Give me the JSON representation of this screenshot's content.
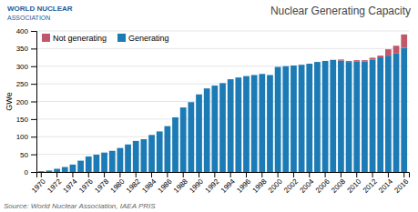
{
  "chart_data": {
    "type": "bar",
    "stacked": true,
    "title": "Nuclear Generating Capacity",
    "y_label": "GWe",
    "annotations": [
      "Source: World Nuclear Association, IAEA PRIS",
      "WORLD NUCLEAR",
      "ASSOCIATION"
    ],
    "categories": [
      "1970",
      null,
      "1972",
      null,
      "1974",
      null,
      "1976",
      null,
      "1978",
      null,
      "1980",
      null,
      "1982",
      null,
      "1984",
      null,
      "1986",
      null,
      "1988",
      null,
      "1990",
      null,
      "1992",
      null,
      "1994",
      null,
      "1996",
      null,
      "1998",
      null,
      "2000",
      null,
      "2002",
      null,
      "2004",
      null,
      "2006",
      null,
      "2008",
      null,
      "2010",
      null,
      "2012",
      null,
      "2014",
      null,
      "2016"
    ],
    "series": [
      {
        "name": "Generating",
        "color": "#1c7bb5",
        "values": [
          2,
          4,
          9,
          14,
          21,
          32,
          44,
          49,
          55,
          60,
          68,
          78,
          88,
          93,
          105,
          115,
          130,
          155,
          183,
          198,
          220,
          237,
          245,
          252,
          263,
          268,
          272,
          275,
          278,
          275,
          298,
          300,
          302,
          304,
          307,
          312,
          315,
          318,
          316,
          312,
          314,
          313,
          319,
          325,
          330,
          336,
          352
        ]
      },
      {
        "name": "Not generating",
        "color": "#c0586a",
        "values": [
          0,
          0,
          0,
          0,
          0,
          0,
          0,
          0,
          0,
          0,
          0,
          0,
          0,
          0,
          0,
          0,
          0,
          0,
          0,
          0,
          0,
          0,
          0,
          0,
          0,
          0,
          0,
          0,
          0,
          0,
          0,
          0,
          0,
          0,
          0,
          0,
          0,
          0,
          3,
          3,
          3,
          4,
          5,
          5,
          18,
          22,
          38
        ]
      }
    ],
    "ylim": [
      0,
      400
    ],
    "yticks": [
      0,
      50,
      100,
      150,
      200,
      250,
      300,
      350,
      400
    ],
    "grid": true,
    "legend": "upper left"
  }
}
